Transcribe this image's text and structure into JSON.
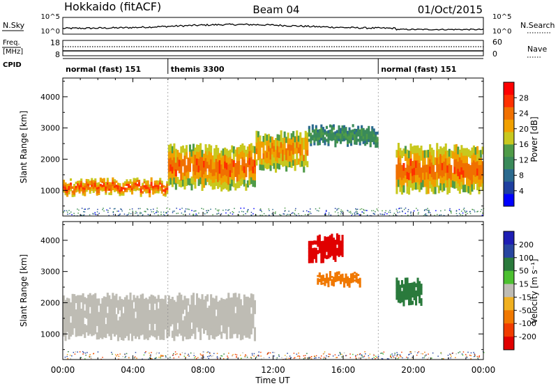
{
  "header": {
    "station": "Hokkaido (fitACF)",
    "beam": "Beam 04",
    "date": "01/Oct/2015"
  },
  "top_strips": {
    "nsky_label": "N.Sky",
    "nsearch_label": "N.Search",
    "nsky_ticks": [
      "10^5",
      "10^0"
    ],
    "nsearch_ticks": [
      "10^5",
      "10^0"
    ],
    "freq_label": "Freq.",
    "freq_unit": "[MHz]",
    "freq_ticks": [
      "18",
      "8"
    ],
    "nave_label": "Nave",
    "nave_ticks": [
      "60",
      "0"
    ],
    "cpid_label": "CPID",
    "cpid_segments": [
      {
        "label": "normal (fast) 151",
        "start_hour": 0,
        "end_hour": 6
      },
      {
        "label": "themis 3300",
        "start_hour": 6,
        "end_hour": 18
      },
      {
        "label": "normal (fast) 151",
        "start_hour": 18,
        "end_hour": 24
      }
    ]
  },
  "colors": {
    "power_scale": [
      "#0000ff",
      "#1e3fa0",
      "#2b6a8e",
      "#3a8a5a",
      "#4f9b48",
      "#c8c81e",
      "#f0a000",
      "#f07000",
      "#ff3000",
      "#ff0000"
    ],
    "velocity_scale": [
      "#1e1eb4",
      "#2846a0",
      "#2a7a3c",
      "#4cc030",
      "#bebcb4",
      "#f0b020",
      "#f07800",
      "#f03c00",
      "#e00000"
    ]
  },
  "chart_data": [
    {
      "type": "heatmap",
      "name": "power",
      "ylabel": "Slant Range [km]",
      "xlabel": "Time UT",
      "xlim": [
        0,
        24
      ],
      "ylim": [
        180,
        4600
      ],
      "x_ticks": [
        "00:00",
        "04:00",
        "08:00",
        "12:00",
        "16:00",
        "20:00",
        "00:00"
      ],
      "y_ticks": [
        1000,
        2000,
        3000,
        4000
      ],
      "colorbar": {
        "label": "Power [dB]",
        "ticks": [
          4,
          8,
          12,
          16,
          20,
          24,
          28
        ],
        "range": [
          0,
          32
        ]
      },
      "echo_bands": [
        {
          "start_hour": 0,
          "end_hour": 6,
          "range_km": [
            900,
            1300
          ],
          "power_db": 28
        },
        {
          "start_hour": 6,
          "end_hour": 11,
          "range_km": [
            1100,
            2400
          ],
          "power_db": 26
        },
        {
          "start_hour": 11,
          "end_hour": 14,
          "range_km": [
            1700,
            2800
          ],
          "power_db": 24
        },
        {
          "start_hour": 14,
          "end_hour": 18,
          "range_km": [
            2500,
            3000
          ],
          "power_db": 14
        },
        {
          "start_hour": 19,
          "end_hour": 24,
          "range_km": [
            1000,
            2400
          ],
          "power_db": 26
        }
      ]
    },
    {
      "type": "heatmap",
      "name": "velocity",
      "ylabel": "Slant Range [km]",
      "xlabel": "Time UT",
      "xlim": [
        0,
        24
      ],
      "ylim": [
        180,
        4600
      ],
      "x_ticks": [
        "00:00",
        "04:00",
        "08:00",
        "12:00",
        "16:00",
        "20:00",
        "00:00"
      ],
      "y_ticks": [
        1000,
        2000,
        3000,
        4000
      ],
      "colorbar": {
        "label": "Velocity [m s⁻¹]",
        "ticks": [
          200,
          100,
          50,
          15,
          -15,
          -50,
          -100,
          -200
        ]
      },
      "echo_bands": [
        {
          "start_hour": 0,
          "end_hour": 11,
          "range_km": [
            900,
            2200
          ],
          "velocity": 0
        },
        {
          "start_hour": 14,
          "end_hour": 16,
          "range_km": [
            3400,
            4100
          ],
          "velocity": -200
        },
        {
          "start_hour": 14.5,
          "end_hour": 17,
          "range_km": [
            2600,
            2900
          ],
          "velocity": -60
        },
        {
          "start_hour": 19,
          "end_hour": 20.5,
          "range_km": [
            2000,
            2700
          ],
          "velocity": 40
        }
      ]
    }
  ],
  "time_axis_label": "Time UT"
}
